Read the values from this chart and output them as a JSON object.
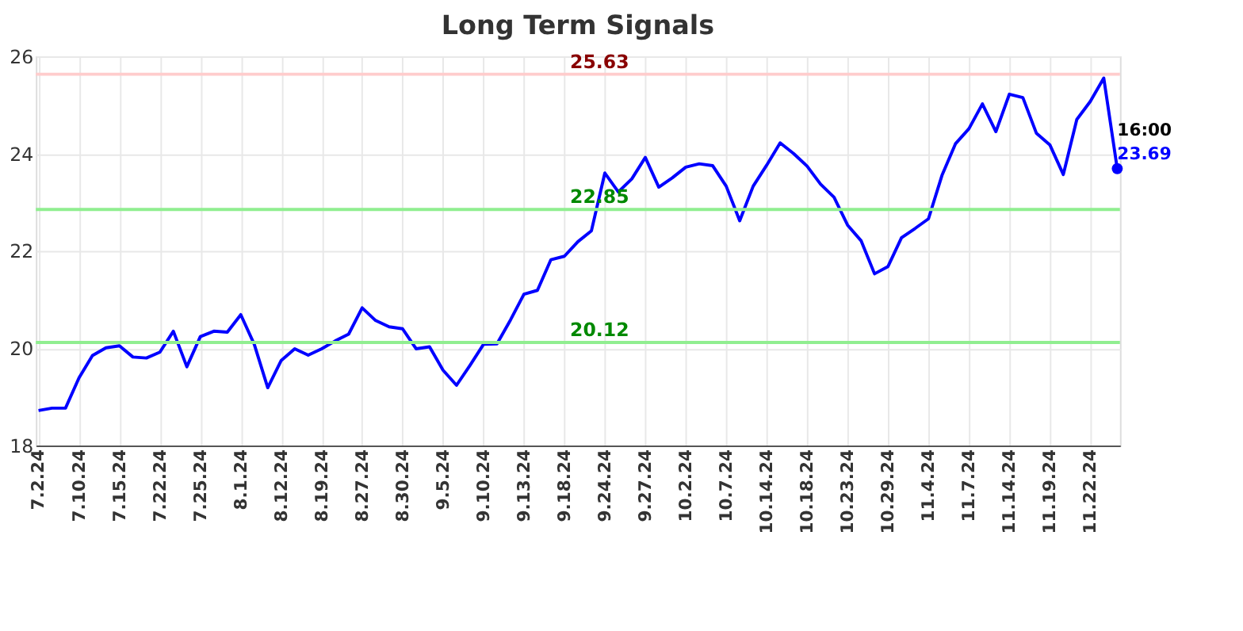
{
  "chart_data": {
    "type": "line",
    "title": "Long Term Signals",
    "categories": [
      "7.2.24",
      null,
      null,
      "7.10.24",
      null,
      null,
      "7.15.24",
      null,
      null,
      "7.22.24",
      null,
      null,
      "7.25.24",
      null,
      null,
      "8.1.24",
      null,
      null,
      "8.12.24",
      null,
      null,
      "8.19.24",
      null,
      null,
      "8.27.24",
      null,
      null,
      "8.30.24",
      null,
      null,
      "9.5.24",
      null,
      null,
      "9.10.24",
      null,
      null,
      "9.13.24",
      null,
      null,
      "9.18.24",
      null,
      null,
      "9.24.24",
      null,
      null,
      "9.27.24",
      null,
      null,
      "10.2.24",
      null,
      null,
      "10.7.24",
      null,
      null,
      "10.14.24",
      null,
      null,
      "10.18.24",
      null,
      null,
      "10.23.24",
      null,
      null,
      "10.29.24",
      null,
      null,
      "11.4.24",
      null,
      null,
      "11.7.24",
      null,
      null,
      "11.14.24",
      null,
      null,
      "11.19.24",
      null,
      null,
      "11.22.24",
      null,
      null
    ],
    "series": [
      {
        "color": "#0000ff",
        "values": [
          18.72,
          18.77,
          18.77,
          19.39,
          19.85,
          20.01,
          20.05,
          19.82,
          19.8,
          19.92,
          20.35,
          19.62,
          20.24,
          20.35,
          20.33,
          20.69,
          20.08,
          19.19,
          19.75,
          19.99,
          19.86,
          19.99,
          20.15,
          20.29,
          20.83,
          20.57,
          20.44,
          20.4,
          19.99,
          20.03,
          19.55,
          19.24,
          19.65,
          20.08,
          20.09,
          20.58,
          21.11,
          21.19,
          21.82,
          21.89,
          22.19,
          22.41,
          23.6,
          23.21,
          23.48,
          23.92,
          23.31,
          23.5,
          23.72,
          23.79,
          23.75,
          23.33,
          22.62,
          23.33,
          23.76,
          24.22,
          24.0,
          23.74,
          23.37,
          23.1,
          22.53,
          22.21,
          21.53,
          21.68,
          22.27,
          22.46,
          22.66,
          23.55,
          24.2,
          24.51,
          25.02,
          24.45,
          25.22,
          25.15,
          24.42,
          24.18,
          23.57,
          24.7,
          25.07,
          25.55,
          23.69
        ],
        "value_labels": [
          null,
          null,
          null,
          null,
          null,
          null,
          null,
          null,
          null,
          null,
          null,
          null,
          null,
          null,
          null,
          null,
          null,
          null,
          null,
          null,
          null,
          null,
          null,
          null,
          null,
          null,
          null,
          null,
          null,
          null,
          null,
          null,
          null,
          null,
          null,
          null,
          null,
          null,
          null,
          null,
          null,
          null,
          null,
          null,
          null,
          null,
          null,
          null,
          null,
          null,
          null,
          null,
          null,
          null,
          null,
          null,
          null,
          null,
          null,
          null,
          null,
          null,
          null,
          null,
          null,
          null,
          null,
          null,
          null,
          null,
          null,
          null,
          null,
          null,
          null,
          null,
          null,
          null,
          null,
          null,
          "23.69"
        ]
      }
    ],
    "ylim": [
      18,
      26
    ],
    "yticks": [
      18,
      20,
      22,
      24,
      26
    ],
    "grid": true,
    "marker": "none",
    "line_style": "solid",
    "ref_lines": [
      {
        "axis": "y",
        "value": 25.63,
        "label": "25.63",
        "color": "#ffcccc"
      },
      {
        "axis": "y",
        "value": 22.85,
        "label": "22.85",
        "color": "#90ee90"
      },
      {
        "axis": "y",
        "value": 20.12,
        "label": "20.12",
        "color": "#90ee90"
      }
    ],
    "annotations": [
      "16:00"
    ]
  }
}
